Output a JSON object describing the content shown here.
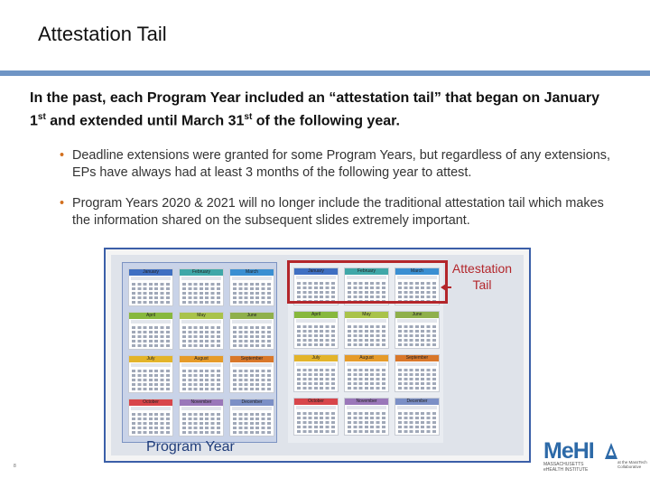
{
  "slide": {
    "title": "Attestation Tail",
    "intro_part1": "In the past, each Program Year included an “attestation tail” that began on January 1",
    "intro_sup1": "st",
    "intro_part2": " and extended until March 31",
    "intro_sup2": "st",
    "intro_part3": " of the following year.",
    "bullets": [
      "Deadline extensions were granted for some Program Years, but regardless of any extensions, EPs have always had at least 3 months of the following year to attest.",
      "Program Years 2020 & 2021 will no longer include the traditional attestation tail which makes the information shared on the subsequent slides extremely important."
    ],
    "bullet_marker": "•",
    "slide_number": "8"
  },
  "calendar": {
    "program_year_label": "Program Year",
    "attestation_tail_label": "Attestation Tail",
    "program_year_months": [
      {
        "name": "January",
        "color": "#3f6fc2"
      },
      {
        "name": "February",
        "color": "#3fa7a8"
      },
      {
        "name": "March",
        "color": "#3a8fd2"
      },
      {
        "name": "April",
        "color": "#87b83d"
      },
      {
        "name": "May",
        "color": "#a9c34a"
      },
      {
        "name": "June",
        "color": "#8fb04b"
      },
      {
        "name": "July",
        "color": "#e3b42a"
      },
      {
        "name": "August",
        "color": "#e69b29"
      },
      {
        "name": "September",
        "color": "#d9772a"
      },
      {
        "name": "October",
        "color": "#d8454a"
      },
      {
        "name": "November",
        "color": "#9a77b9"
      },
      {
        "name": "December",
        "color": "#7b8fc6"
      }
    ],
    "tail_year_months": [
      {
        "name": "January",
        "color": "#3f6fc2"
      },
      {
        "name": "February",
        "color": "#3fa7a8"
      },
      {
        "name": "March",
        "color": "#3a8fd2"
      },
      {
        "name": "April",
        "color": "#87b83d"
      },
      {
        "name": "May",
        "color": "#a9c34a"
      },
      {
        "name": "June",
        "color": "#8fb04b"
      },
      {
        "name": "July",
        "color": "#e3b42a"
      },
      {
        "name": "August",
        "color": "#e69b29"
      },
      {
        "name": "September",
        "color": "#d9772a"
      },
      {
        "name": "October",
        "color": "#d8454a"
      },
      {
        "name": "November",
        "color": "#9a77b9"
      },
      {
        "name": "December",
        "color": "#7b8fc6"
      }
    ],
    "tail_highlight_color": "#b3262b"
  },
  "logo": {
    "brand": "MeHI",
    "subline1": "MASSACHUSETTS",
    "subline2": "eHEALTH INSTITUTE",
    "partner_line1": "at the MassTech",
    "partner_line2": "Collaborative",
    "color": "#2d6aa8"
  }
}
